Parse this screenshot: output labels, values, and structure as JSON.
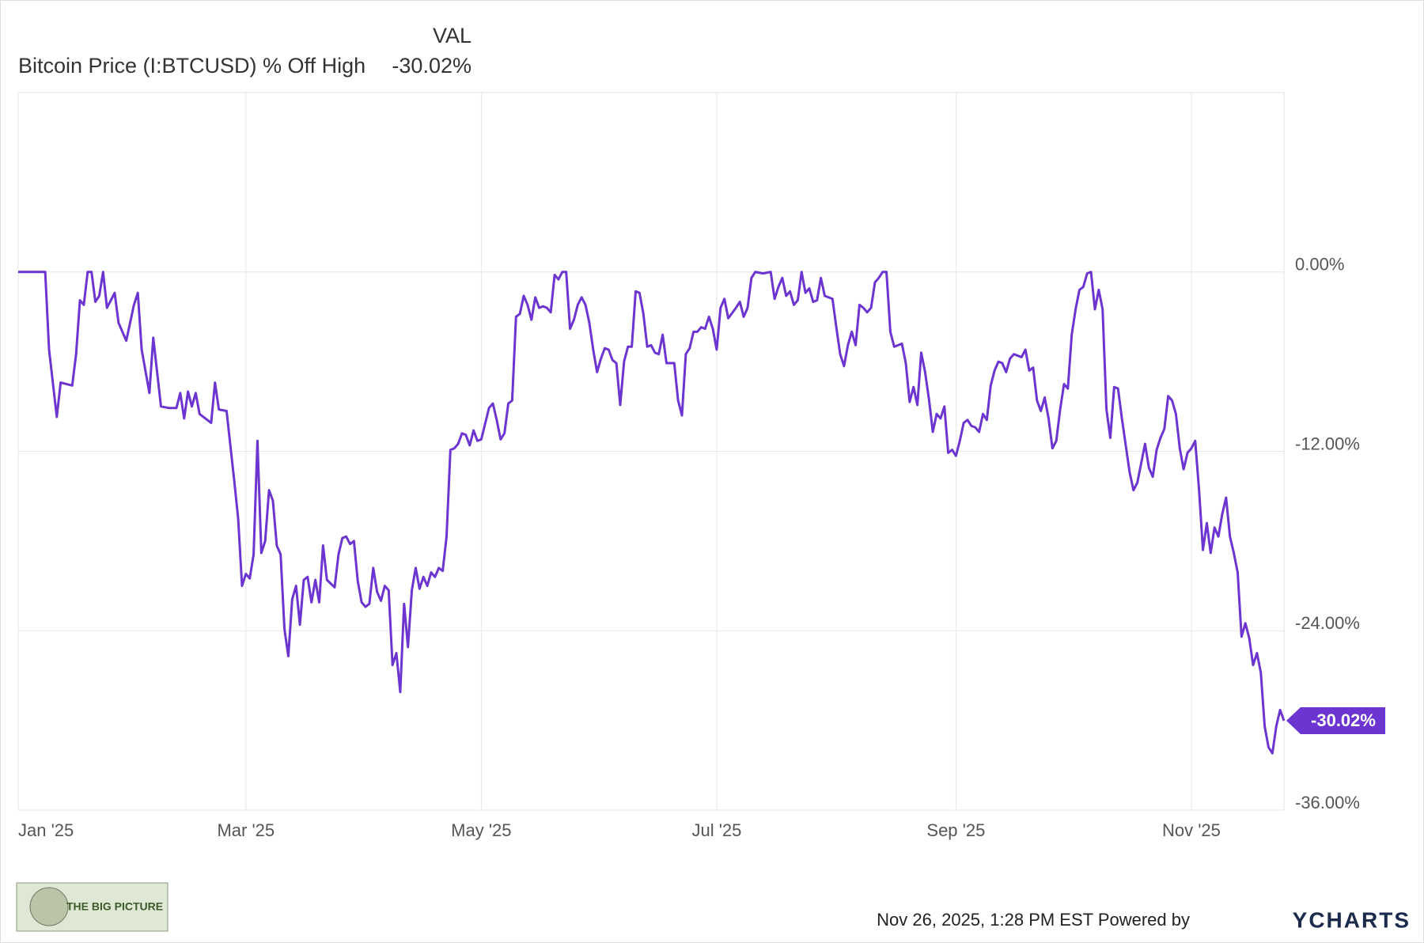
{
  "chart_data": {
    "type": "line",
    "column_header": "VAL",
    "current_value_label": "-30.02%",
    "footer": "Nov 26, 2025, 1:28 PM EST Powered by",
    "brand": "YCHARTS",
    "logo_text": "THE BIG PICTURE",
    "x": [
      "2025-01-01",
      "2025-01-08",
      "2025-01-09",
      "2025-01-11",
      "2025-01-12",
      "2025-01-15",
      "2025-01-16",
      "2025-01-17",
      "2025-01-18",
      "2025-01-19",
      "2025-01-20",
      "2025-01-21",
      "2025-01-22",
      "2025-01-23",
      "2025-01-24",
      "2025-01-25",
      "2025-01-26",
      "2025-01-27",
      "2025-01-29",
      "2025-01-31",
      "2025-02-01",
      "2025-02-02",
      "2025-02-04",
      "2025-02-05",
      "2025-02-07",
      "2025-02-09",
      "2025-02-11",
      "2025-02-12",
      "2025-02-13",
      "2025-02-14",
      "2025-02-15",
      "2025-02-16",
      "2025-02-17",
      "2025-02-20",
      "2025-02-21",
      "2025-02-22",
      "2025-02-24",
      "2025-02-26",
      "2025-02-27",
      "2025-02-28",
      "2025-03-01",
      "2025-03-02",
      "2025-03-03",
      "2025-03-04",
      "2025-03-05",
      "2025-03-06",
      "2025-03-07",
      "2025-03-08",
      "2025-03-09",
      "2025-03-10",
      "2025-03-11",
      "2025-03-12",
      "2025-03-13",
      "2025-03-14",
      "2025-03-15",
      "2025-03-16",
      "2025-03-17",
      "2025-03-18",
      "2025-03-19",
      "2025-03-20",
      "2025-03-21",
      "2025-03-22",
      "2025-03-24",
      "2025-03-25",
      "2025-03-26",
      "2025-03-27",
      "2025-03-28",
      "2025-03-29",
      "2025-03-30",
      "2025-03-31",
      "2025-04-01",
      "2025-04-02",
      "2025-04-03",
      "2025-04-04",
      "2025-04-05",
      "2025-04-06",
      "2025-04-07",
      "2025-04-08",
      "2025-04-09",
      "2025-04-10",
      "2025-04-11",
      "2025-04-12",
      "2025-04-13",
      "2025-04-14",
      "2025-04-15",
      "2025-04-16",
      "2025-04-17",
      "2025-04-18",
      "2025-04-19",
      "2025-04-20",
      "2025-04-21",
      "2025-04-22",
      "2025-04-23",
      "2025-04-24",
      "2025-04-25",
      "2025-04-26",
      "2025-04-27",
      "2025-04-28",
      "2025-04-29",
      "2025-04-30",
      "2025-05-01",
      "2025-05-03",
      "2025-05-04",
      "2025-05-05",
      "2025-05-06",
      "2025-05-07",
      "2025-05-08",
      "2025-05-09",
      "2025-05-10",
      "2025-05-11",
      "2025-05-12",
      "2025-05-13",
      "2025-05-14",
      "2025-05-15",
      "2025-05-16",
      "2025-05-17",
      "2025-05-18",
      "2025-05-19",
      "2025-05-20",
      "2025-05-21",
      "2025-05-22",
      "2025-05-23",
      "2025-05-24",
      "2025-05-25",
      "2025-05-26",
      "2025-05-27",
      "2025-05-28",
      "2025-05-29",
      "2025-05-30",
      "2025-05-31",
      "2025-06-01",
      "2025-06-02",
      "2025-06-03",
      "2025-06-04",
      "2025-06-05",
      "2025-06-06",
      "2025-06-07",
      "2025-06-08",
      "2025-06-09",
      "2025-06-10",
      "2025-06-11",
      "2025-06-12",
      "2025-06-13",
      "2025-06-14",
      "2025-06-15",
      "2025-06-16",
      "2025-06-17",
      "2025-06-18",
      "2025-06-20",
      "2025-06-21",
      "2025-06-22",
      "2025-06-23",
      "2025-06-24",
      "2025-06-25",
      "2025-06-26",
      "2025-06-27",
      "2025-06-28",
      "2025-06-29",
      "2025-06-30",
      "2025-07-01",
      "2025-07-02",
      "2025-07-03",
      "2025-07-04",
      "2025-07-06",
      "2025-07-07",
      "2025-07-08",
      "2025-07-09",
      "2025-07-10",
      "2025-07-11",
      "2025-07-13",
      "2025-07-15",
      "2025-07-16",
      "2025-07-17",
      "2025-07-18",
      "2025-07-19",
      "2025-07-20",
      "2025-07-21",
      "2025-07-22",
      "2025-07-23",
      "2025-07-24",
      "2025-07-25",
      "2025-07-26",
      "2025-07-27",
      "2025-07-28",
      "2025-07-29",
      "2025-07-30",
      "2025-07-31",
      "2025-08-01",
      "2025-08-02",
      "2025-08-03",
      "2025-08-04",
      "2025-08-05",
      "2025-08-06",
      "2025-08-07",
      "2025-08-08",
      "2025-08-09",
      "2025-08-10",
      "2025-08-11",
      "2025-08-12",
      "2025-08-13",
      "2025-08-14",
      "2025-08-15",
      "2025-08-16",
      "2025-08-17",
      "2025-08-18",
      "2025-08-19",
      "2025-08-20",
      "2025-08-21",
      "2025-08-22",
      "2025-08-23",
      "2025-08-24",
      "2025-08-25",
      "2025-08-26",
      "2025-08-27",
      "2025-08-28",
      "2025-08-29",
      "2025-08-30",
      "2025-08-31",
      "2025-09-01",
      "2025-09-02",
      "2025-09-03",
      "2025-09-04",
      "2025-09-05",
      "2025-09-06",
      "2025-09-07",
      "2025-09-08",
      "2025-09-09",
      "2025-09-10",
      "2025-09-11",
      "2025-09-12",
      "2025-09-13",
      "2025-09-14",
      "2025-09-15",
      "2025-09-16",
      "2025-09-17",
      "2025-09-18",
      "2025-09-19",
      "2025-09-20",
      "2025-09-21",
      "2025-09-22",
      "2025-09-23",
      "2025-09-24",
      "2025-09-25",
      "2025-09-26",
      "2025-09-27",
      "2025-09-28",
      "2025-09-29",
      "2025-09-30",
      "2025-10-01",
      "2025-10-02",
      "2025-10-03",
      "2025-10-04",
      "2025-10-05",
      "2025-10-06",
      "2025-10-07",
      "2025-10-08",
      "2025-10-09",
      "2025-10-10",
      "2025-10-11",
      "2025-10-12",
      "2025-10-13",
      "2025-10-14",
      "2025-10-15",
      "2025-10-16",
      "2025-10-17",
      "2025-10-18",
      "2025-10-19",
      "2025-10-20",
      "2025-10-21",
      "2025-10-22",
      "2025-10-23",
      "2025-10-24",
      "2025-10-25",
      "2025-10-26",
      "2025-10-27",
      "2025-10-28",
      "2025-10-29",
      "2025-10-30",
      "2025-10-31",
      "2025-11-01",
      "2025-11-02",
      "2025-11-03",
      "2025-11-04",
      "2025-11-05",
      "2025-11-06",
      "2025-11-07",
      "2025-11-08",
      "2025-11-09",
      "2025-11-10",
      "2025-11-11",
      "2025-11-12",
      "2025-11-13",
      "2025-11-14",
      "2025-11-15",
      "2025-11-16",
      "2025-11-17",
      "2025-11-18",
      "2025-11-19",
      "2025-11-20",
      "2025-11-21",
      "2025-11-22",
      "2025-11-23",
      "2025-11-24",
      "2025-11-25"
    ],
    "series": [
      {
        "name": "Bitcoin Price (I:BTCUSD) % Off High",
        "color": "#6c35d1",
        "values": [
          0,
          0,
          -5.2,
          -9.7,
          -7.4,
          -7.6,
          -5.5,
          -1.9,
          -2.2,
          0,
          0,
          -2.0,
          -1.6,
          0,
          -2.4,
          -1.9,
          -1.4,
          -3.4,
          -4.6,
          -2.2,
          -1.4,
          -5.2,
          -8.1,
          -4.4,
          -9.0,
          -9.1,
          -9.1,
          -8.1,
          -9.8,
          -8.0,
          -9.0,
          -8.1,
          -9.5,
          -10.1,
          -7.4,
          -9.2,
          -9.3,
          -14.0,
          -16.5,
          -21.0,
          -20.2,
          -20.5,
          -18.9,
          -11.3,
          -18.8,
          -18.0,
          -14.6,
          -15.3,
          -18.3,
          -18.9,
          -23.9,
          -25.7,
          -21.9,
          -21.0,
          -23.6,
          -20.6,
          -20.4,
          -22.1,
          -20.6,
          -22.1,
          -18.3,
          -20.6,
          -21.1,
          -18.9,
          -17.8,
          -17.7,
          -18.2,
          -18.0,
          -20.7,
          -22.1,
          -22.4,
          -22.2,
          -19.8,
          -21.4,
          -22.0,
          -21.0,
          -21.3,
          -26.3,
          -25.5,
          -28.1,
          -22.2,
          -25.1,
          -21.3,
          -19.8,
          -21.2,
          -20.4,
          -21.0,
          -20.1,
          -20.4,
          -19.8,
          -20.0,
          -17.7,
          -11.9,
          -11.8,
          -11.5,
          -10.8,
          -10.9,
          -11.6,
          -10.6,
          -11.3,
          -11.2,
          -9.1,
          -8.8,
          -9.9,
          -11.2,
          -10.8,
          -8.8,
          -8.6,
          -3.0,
          -2.8,
          -1.6,
          -2.2,
          -3.2,
          -1.7,
          -2.4,
          -2.3,
          -2.4,
          -2.7,
          -0.2,
          -0.5,
          0,
          0,
          -3.8,
          -3.2,
          -2.2,
          -1.7,
          -2.2,
          -3.4,
          -5.2,
          -6.7,
          -5.8,
          -5.1,
          -5.2,
          -5.9,
          -6.1,
          -8.9,
          -6.0,
          -5.0,
          -5.0,
          -1.3,
          -1.4,
          -2.8,
          -5.0,
          -4.9,
          -5.4,
          -5.5,
          -4.2,
          -6.1,
          -6.1,
          -8.6,
          -9.6,
          -5.5,
          -5.1,
          -4.0,
          -4.0,
          -3.7,
          -3.8,
          -3.0,
          -3.8,
          -5.2,
          -2.4,
          -1.8,
          -3.1,
          -2.4,
          -2.0,
          -3.0,
          -2.4,
          -0.4,
          0,
          -0.1,
          0,
          -1.8,
          -1.0,
          -0.4,
          -1.6,
          -1.3,
          -2.2,
          -1.9,
          0,
          -1.4,
          -1.1,
          -2.0,
          -1.9,
          -0.4,
          -1.6,
          -1.7,
          -1.8,
          -3.7,
          -5.5,
          -6.3,
          -4.9,
          -4.0,
          -4.9,
          -2.2,
          -2.4,
          -2.7,
          -2.4,
          -0.7,
          -0.4,
          0,
          0,
          -4.0,
          -5.0,
          -4.9,
          -4.8,
          -6.1,
          -8.7,
          -7.7,
          -8.9,
          -5.4,
          -6.7,
          -8.5,
          -10.7,
          -9.5,
          -9.8,
          -9.0,
          -12.1,
          -11.9,
          -12.3,
          -11.3,
          -10.1,
          -9.9,
          -10.3,
          -10.4,
          -10.7,
          -9.5,
          -9.9,
          -7.6,
          -6.6,
          -6.0,
          -6.1,
          -6.7,
          -5.8,
          -5.5,
          -5.6,
          -5.7,
          -5.2,
          -6.6,
          -6.4,
          -8.6,
          -9.3,
          -8.4,
          -9.8,
          -11.8,
          -11.3,
          -9.2,
          -7.5,
          -7.8,
          -4.2,
          -2.5,
          -1.2,
          -1.0,
          -0.1,
          0,
          -2.5,
          -1.2,
          -2.5,
          -9.2,
          -11.1,
          -7.7,
          -7.8,
          -9.8,
          -11.6,
          -13.4,
          -14.6,
          -14.1,
          -12.8,
          -11.5,
          -13.1,
          -13.7,
          -11.9,
          -11.1,
          -10.5,
          -8.3,
          -8.6,
          -9.5,
          -11.8,
          -13.2,
          -12.1,
          -11.8,
          -11.3,
          -14.6,
          -18.6,
          -16.8,
          -18.8,
          -17.1,
          -17.7,
          -16.2,
          -15.1,
          -17.7,
          -18.8,
          -20.1,
          -24.4,
          -23.5,
          -24.5,
          -26.3,
          -25.5,
          -26.8,
          -30.4,
          -31.8,
          -32.2,
          -30.4,
          -29.3,
          -30.02
        ]
      }
    ],
    "xlim": [
      "2025-01-01",
      "2025-11-25"
    ],
    "xticks": [
      {
        "value": "2025-01-01",
        "label": "Jan '25"
      },
      {
        "value": "2025-03-01",
        "label": "Mar '25"
      },
      {
        "value": "2025-05-01",
        "label": "May '25"
      },
      {
        "value": "2025-07-01",
        "label": "Jul '25"
      },
      {
        "value": "2025-09-01",
        "label": "Sep '25"
      },
      {
        "value": "2025-11-01",
        "label": "Nov '25"
      }
    ],
    "ylim": [
      -36,
      12
    ],
    "yticks": [
      {
        "value": 0,
        "label": "0.00%"
      },
      {
        "value": -12,
        "label": "-12.00%"
      },
      {
        "value": -24,
        "label": "-24.00%"
      },
      {
        "value": -36,
        "label": "-36.00%"
      }
    ],
    "grid": true
  }
}
